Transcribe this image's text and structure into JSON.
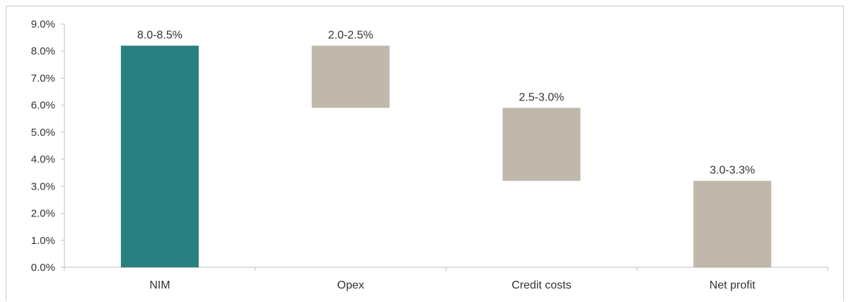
{
  "chart_data": {
    "type": "bar",
    "subtype": "waterfall",
    "title": "",
    "xlabel": "",
    "ylabel": "",
    "categories": [
      "NIM",
      "Opex",
      "Credit costs",
      "Net profit"
    ],
    "bars": [
      {
        "category": "NIM",
        "base": 0.0,
        "top": 8.2,
        "label": "8.0-8.5%",
        "color": "#2a7f80"
      },
      {
        "category": "Opex",
        "base": 5.9,
        "top": 8.2,
        "label": "2.0-2.5%",
        "color": "#bfb8ab"
      },
      {
        "category": "Credit costs",
        "base": 3.2,
        "top": 5.9,
        "label": "2.5-3.0%",
        "color": "#bfb8ab"
      },
      {
        "category": "Net profit",
        "base": 0.0,
        "top": 3.2,
        "label": "3.0-3.3%",
        "color": "#bfb8ab"
      }
    ],
    "ylim": [
      0,
      9
    ],
    "yticks": [
      0,
      1,
      2,
      3,
      4,
      5,
      6,
      7,
      8,
      9
    ],
    "ytick_labels": [
      "0.0%",
      "1.0%",
      "2.0%",
      "3.0%",
      "4.0%",
      "5.0%",
      "6.0%",
      "7.0%",
      "8.0%",
      "9.0%"
    ],
    "grid": false,
    "legend": "none"
  }
}
